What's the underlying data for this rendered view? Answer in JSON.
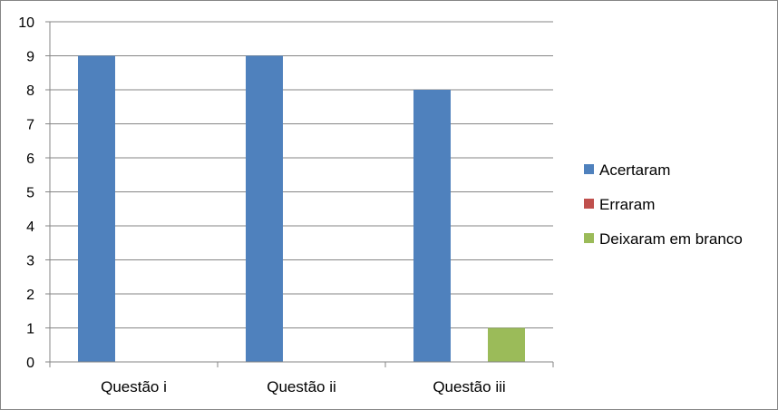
{
  "chart_data": {
    "type": "bar",
    "categories": [
      "Questão i",
      "Questão ii",
      "Questão iii"
    ],
    "series": [
      {
        "name": "Acertaram",
        "color": "#4F81BD",
        "values": [
          9,
          9,
          8
        ]
      },
      {
        "name": "Erraram",
        "color": "#C0504D",
        "values": [
          0,
          0,
          0
        ]
      },
      {
        "name": "Deixaram em branco",
        "color": "#9BBB59",
        "values": [
          0,
          0,
          1
        ]
      }
    ],
    "ylim": [
      0,
      10
    ],
    "yticks": [
      0,
      1,
      2,
      3,
      4,
      5,
      6,
      7,
      8,
      9,
      10
    ],
    "grid": true,
    "legend_position": "right"
  }
}
